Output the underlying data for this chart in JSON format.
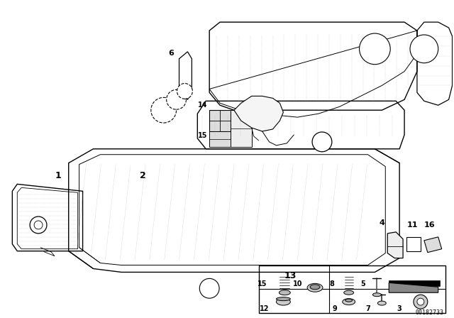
{
  "bg_color": "#ffffff",
  "fig_width": 6.4,
  "fig_height": 4.48,
  "watermark": "00182733",
  "line_color": "#000000",
  "dot_color": "#888888"
}
